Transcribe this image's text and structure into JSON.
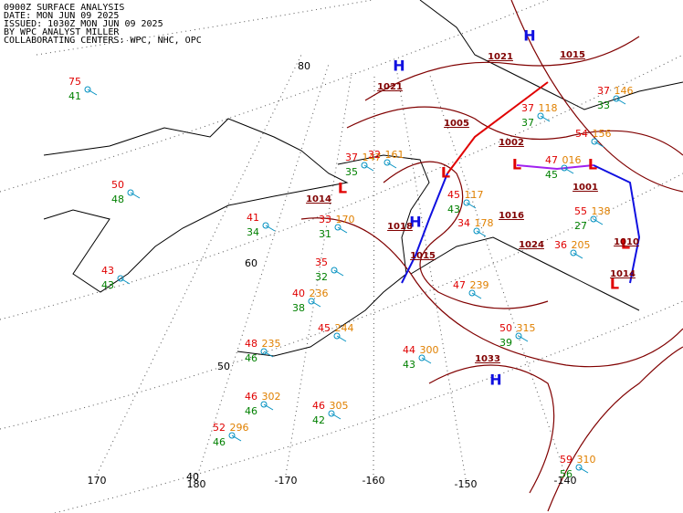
{
  "header": [
    "0900Z SURFACE ANALYSIS",
    "DATE: MON JUN 09 2025",
    "ISSUED: 1030Z MON JUN 09 2025",
    "BY WPC ANALYST MILLER",
    "COLLABORATING CENTERS: WPC, NHC, OPC"
  ],
  "lat_labels": [
    "80",
    "60",
    "50",
    "40"
  ],
  "lon_labels": [
    "170",
    "180",
    "-170",
    "-160",
    "-150",
    "-140"
  ],
  "centers": [
    "H",
    "H",
    "H",
    "H",
    "L",
    "L",
    "L",
    "L",
    "L",
    "L"
  ],
  "isobar_labels": [
    "1021",
    "1021",
    "1015",
    "1005",
    "1002",
    "1001",
    "1014",
    "1018",
    "1015",
    "1010",
    "1014",
    "1033",
    "1016",
    "1024"
  ],
  "stations": [
    {
      "temp": "75",
      "dew": "41"
    },
    {
      "temp": "50",
      "dew": "48"
    },
    {
      "temp": "43",
      "dew": "43"
    },
    {
      "temp": "41",
      "dew": "34"
    },
    {
      "temp": "33",
      "pres": "170",
      "dew": "31"
    },
    {
      "temp": "35",
      "dew": "32"
    },
    {
      "temp": "37",
      "pres": "147",
      "dew": "35"
    },
    {
      "temp": "32",
      "pres": "161"
    },
    {
      "temp": "40",
      "pres": "236",
      "dew": "38"
    },
    {
      "temp": "45",
      "pres": "244"
    },
    {
      "temp": "48",
      "pres": "235",
      "dew": "46"
    },
    {
      "temp": "46",
      "pres": "302",
      "dew": "46"
    },
    {
      "temp": "46",
      "pres": "305",
      "dew": "42"
    },
    {
      "temp": "52",
      "pres": "296",
      "dew": "46"
    },
    {
      "temp": "44",
      "pres": "300",
      "dew": "43"
    },
    {
      "temp": "50",
      "pres": "315",
      "dew": "39"
    },
    {
      "temp": "47",
      "pres": "239"
    },
    {
      "temp": "59",
      "pres": "310",
      "dew": "56"
    },
    {
      "temp": "47",
      "pres": "016",
      "dew": "45"
    },
    {
      "temp": "54",
      "pres": "156"
    },
    {
      "temp": "55",
      "pres": "138",
      "dew": "27"
    },
    {
      "temp": "36",
      "pres": "205"
    },
    {
      "temp": "37",
      "pres": "118",
      "dew": "37"
    },
    {
      "temp": "37",
      "pres": "146",
      "dew": "33"
    },
    {
      "temp": "34",
      "pres": "178"
    },
    {
      "temp": "45",
      "pres": "117",
      "dew": "43"
    }
  ]
}
